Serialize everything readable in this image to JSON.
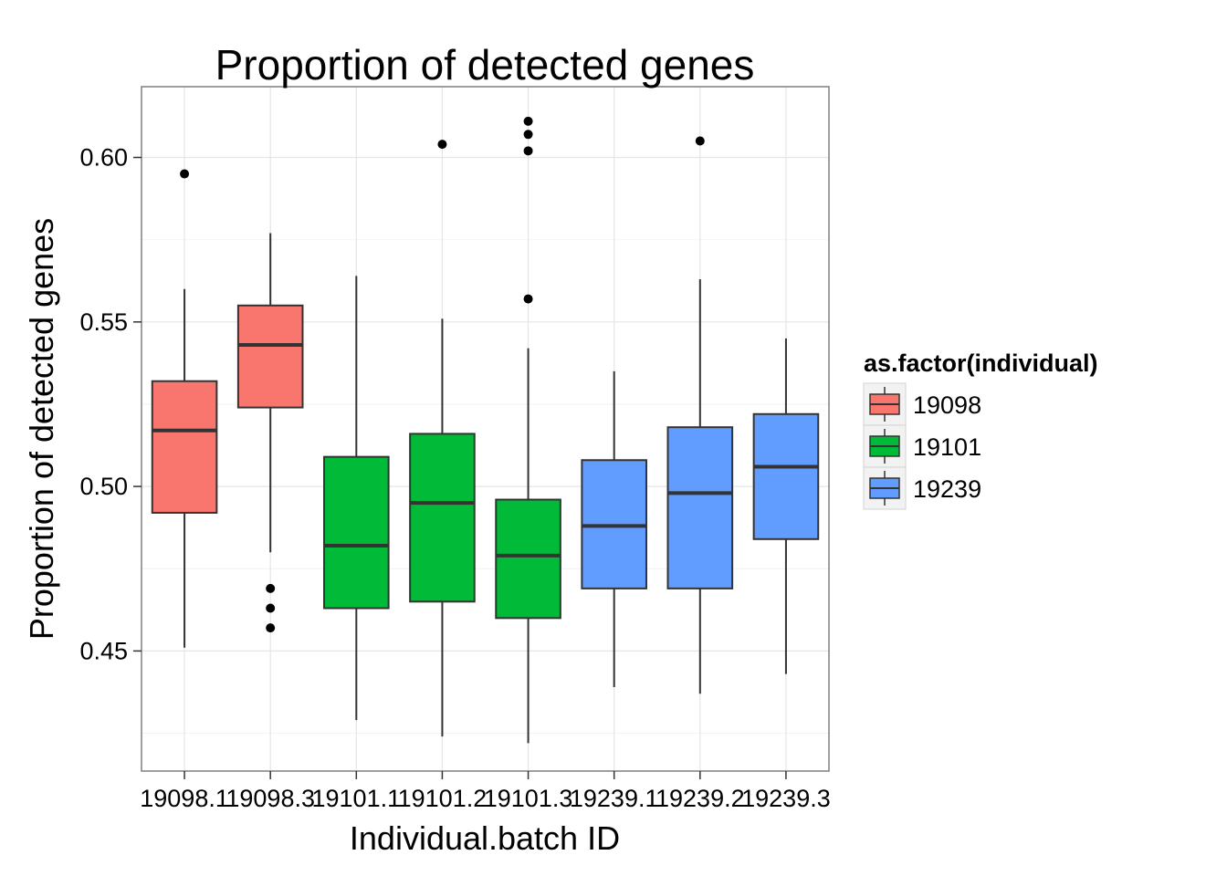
{
  "chart_data": {
    "type": "boxplot",
    "title": "Proportion of detected genes",
    "xlabel": "Individual.batch ID",
    "ylabel": "Proportion of detected genes",
    "ylim": [
      0.4135,
      0.6215
    ],
    "yticks": [
      0.45,
      0.5,
      0.55,
      0.6
    ],
    "ytick_labels": [
      "0.45",
      "0.50",
      "0.55",
      "0.60"
    ],
    "grid": true,
    "legend": {
      "title": "as.factor(individual)",
      "position": "right",
      "entries": [
        {
          "label": "19098",
          "color": "#F8766D"
        },
        {
          "label": "19101",
          "color": "#00BA38"
        },
        {
          "label": "19239",
          "color": "#619CFF"
        }
      ]
    },
    "categories": [
      "19098.1",
      "19098.3",
      "19101.1",
      "19101.2",
      "19101.3",
      "19239.1",
      "19239.2",
      "19239.3"
    ],
    "boxes": [
      {
        "category": "19098.1",
        "group": "19098",
        "whisker_low": 0.451,
        "q1": 0.492,
        "median": 0.517,
        "q3": 0.532,
        "whisker_high": 0.56,
        "outliers": [
          0.595
        ]
      },
      {
        "category": "19098.3",
        "group": "19098",
        "whisker_low": 0.48,
        "q1": 0.524,
        "median": 0.543,
        "q3": 0.555,
        "whisker_high": 0.577,
        "outliers": [
          0.469,
          0.463,
          0.457
        ]
      },
      {
        "category": "19101.1",
        "group": "19101",
        "whisker_low": 0.429,
        "q1": 0.463,
        "median": 0.482,
        "q3": 0.509,
        "whisker_high": 0.564,
        "outliers": []
      },
      {
        "category": "19101.2",
        "group": "19101",
        "whisker_low": 0.424,
        "q1": 0.465,
        "median": 0.495,
        "q3": 0.516,
        "whisker_high": 0.551,
        "outliers": [
          0.604
        ]
      },
      {
        "category": "19101.3",
        "group": "19101",
        "whisker_low": 0.422,
        "q1": 0.46,
        "median": 0.479,
        "q3": 0.496,
        "whisker_high": 0.542,
        "outliers": [
          0.557,
          0.602,
          0.607,
          0.611
        ]
      },
      {
        "category": "19239.1",
        "group": "19239",
        "whisker_low": 0.439,
        "q1": 0.469,
        "median": 0.488,
        "q3": 0.508,
        "whisker_high": 0.535,
        "outliers": []
      },
      {
        "category": "19239.2",
        "group": "19239",
        "whisker_low": 0.437,
        "q1": 0.469,
        "median": 0.498,
        "q3": 0.518,
        "whisker_high": 0.563,
        "outliers": [
          0.605
        ]
      },
      {
        "category": "19239.3",
        "group": "19239",
        "whisker_low": 0.443,
        "q1": 0.484,
        "median": 0.506,
        "q3": 0.522,
        "whisker_high": 0.545,
        "outliers": []
      }
    ]
  }
}
